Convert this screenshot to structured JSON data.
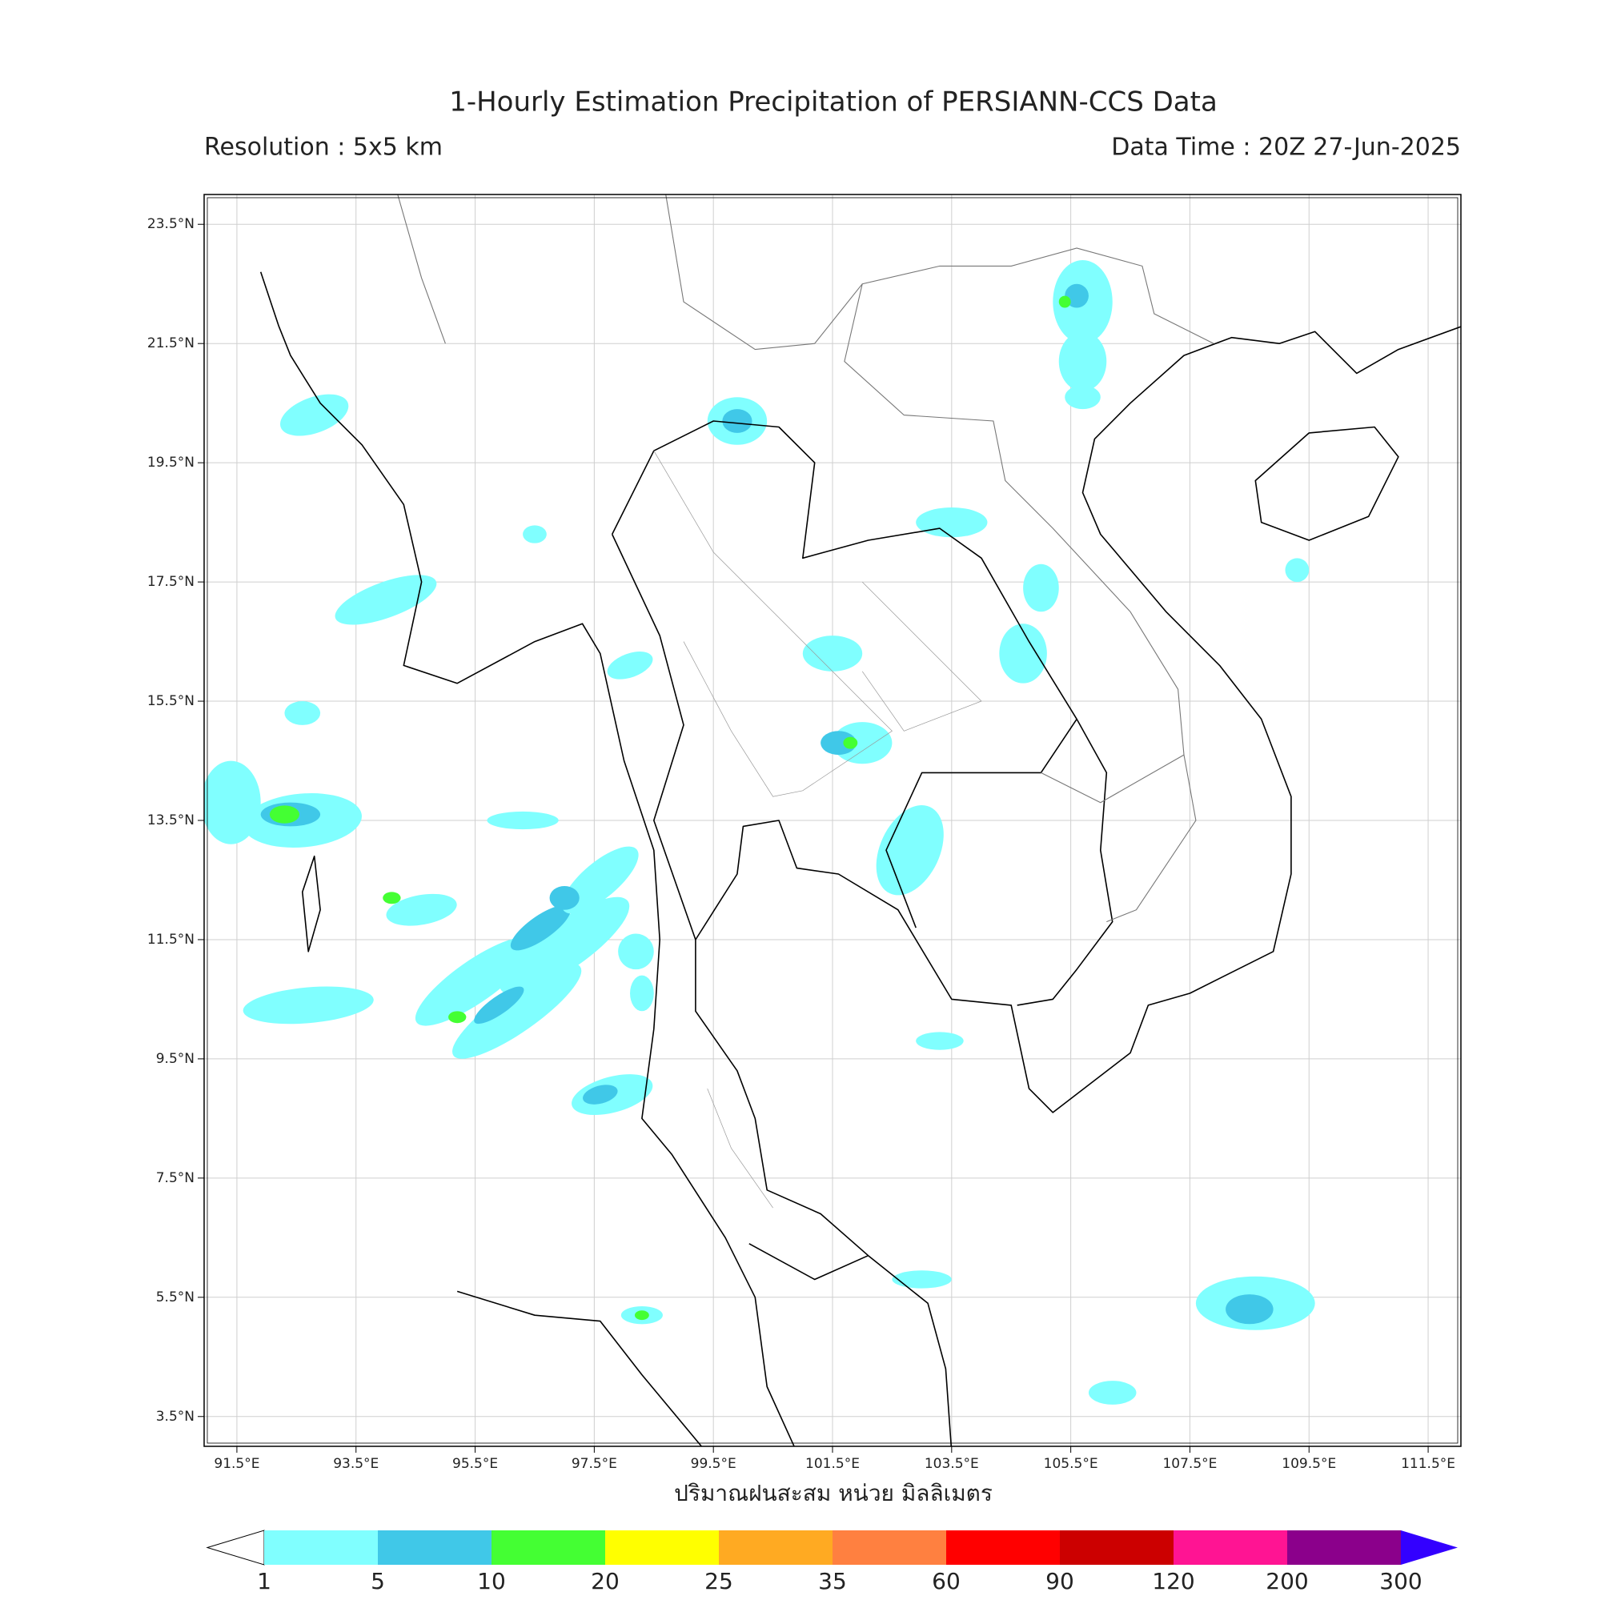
{
  "title": "1-Hourly Estimation Precipitation of PERSIANN-CCS Data",
  "resolution": "Resolution : 5x5 km",
  "data_time": "Data Time : 20Z 27-Jun-2025",
  "map": {
    "xlim": [
      90.95,
      112.05
    ],
    "ylim": [
      3.0,
      24.0
    ],
    "grid": true,
    "xticks": [
      {
        "value": 91.5,
        "label": "91.5°E"
      },
      {
        "value": 93.5,
        "label": "93.5°E"
      },
      {
        "value": 95.5,
        "label": "95.5°E"
      },
      {
        "value": 97.5,
        "label": "97.5°E"
      },
      {
        "value": 99.5,
        "label": "99.5°E"
      },
      {
        "value": 101.5,
        "label": "101.5°E"
      },
      {
        "value": 103.5,
        "label": "103.5°E"
      },
      {
        "value": 105.5,
        "label": "105.5°E"
      },
      {
        "value": 107.5,
        "label": "107.5°E"
      },
      {
        "value": 109.5,
        "label": "109.5°E"
      },
      {
        "value": 111.5,
        "label": "111.5°E"
      }
    ],
    "yticks": [
      {
        "value": 3.5,
        "label": "3.5°N"
      },
      {
        "value": 5.5,
        "label": "5.5°N"
      },
      {
        "value": 7.5,
        "label": "7.5°N"
      },
      {
        "value": 9.5,
        "label": "9.5°N"
      },
      {
        "value": 11.5,
        "label": "11.5°N"
      },
      {
        "value": 13.5,
        "label": "13.5°N"
      },
      {
        "value": 15.5,
        "label": "15.5°N"
      },
      {
        "value": 17.5,
        "label": "17.5°N"
      },
      {
        "value": 19.5,
        "label": "19.5°N"
      },
      {
        "value": 21.5,
        "label": "21.5°N"
      },
      {
        "value": 23.5,
        "label": "23.5°N"
      }
    ],
    "xlabel": "ปริมาณฝนสะสม หน่วย มิลลิเมตร"
  },
  "colorbar": {
    "levels": [
      1,
      5,
      10,
      20,
      25,
      35,
      60,
      90,
      120,
      200,
      300
    ],
    "colors": [
      "#80ffff",
      "#40c8e8",
      "#44ff33",
      "#ffff00",
      "#ffaa22",
      "#ff8040",
      "#ff0000",
      "#cc0000",
      "#ff1493",
      "#8b008b"
    ],
    "under_color": "#ffffff",
    "over_color": "#3300ff"
  }
}
